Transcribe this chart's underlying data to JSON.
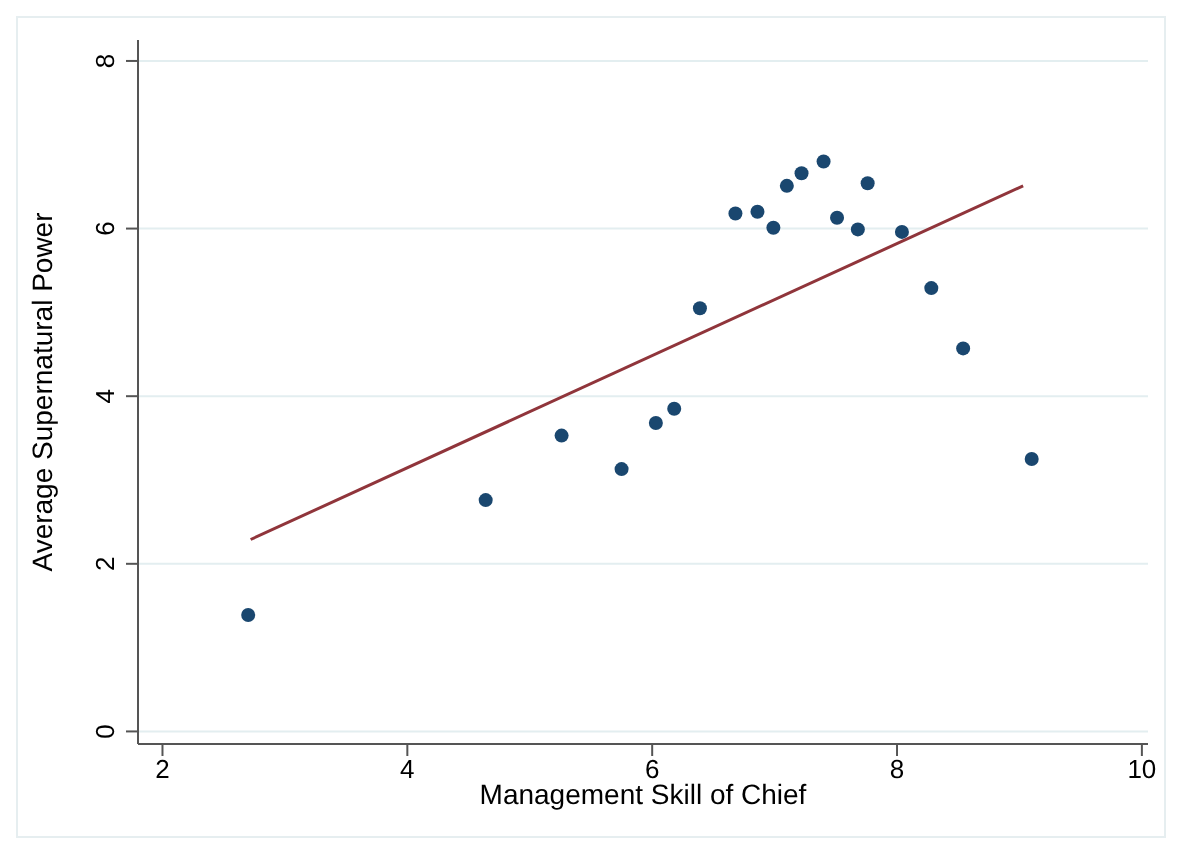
{
  "chart_data": {
    "type": "scatter",
    "xlabel": "Management Skill of Chief",
    "ylabel": "Average Supernatural Power",
    "xlim": [
      1.8,
      10.05
    ],
    "xticks": [
      2,
      4,
      6,
      8,
      10
    ],
    "ylim": [
      -0.15,
      8.25
    ],
    "yticks": [
      0,
      2,
      4,
      6,
      8
    ],
    "grid": "y",
    "marker": "circle",
    "series": [
      {
        "color": "#1a476f",
        "x": [
          2.7,
          4.64,
          5.26,
          5.75,
          6.03,
          6.18,
          6.39,
          6.68,
          6.86,
          6.99,
          7.1,
          7.22,
          7.4,
          7.51,
          7.68,
          7.76,
          8.04,
          8.28,
          8.54,
          9.1
        ],
        "values": [
          1.39,
          2.76,
          3.53,
          3.13,
          3.68,
          3.85,
          5.05,
          6.18,
          6.2,
          6.01,
          6.51,
          6.66,
          6.8,
          6.13,
          5.99,
          6.54,
          5.96,
          5.29,
          4.57,
          3.25
        ]
      },
      {
        "type": "line",
        "marker": "none",
        "color": "#90353b",
        "x": [
          2.72,
          9.03
        ],
        "values": [
          2.29,
          6.51
        ]
      }
    ]
  }
}
